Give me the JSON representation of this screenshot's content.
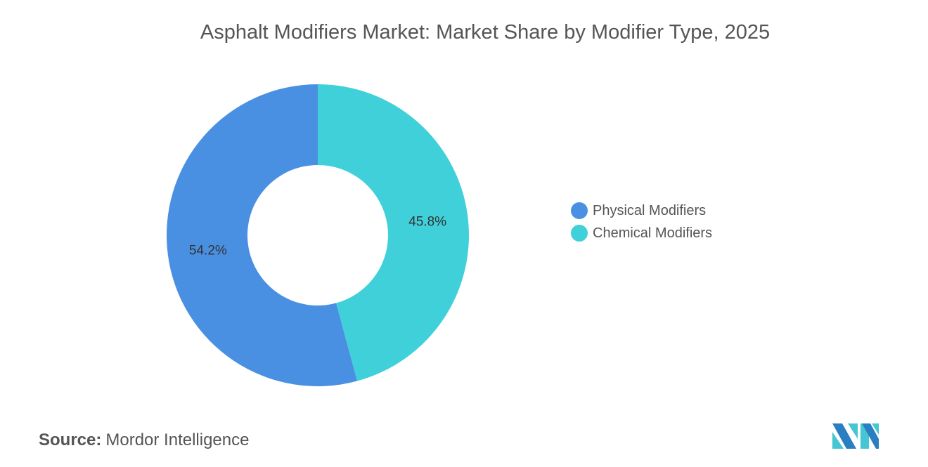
{
  "chart_data": {
    "type": "pie",
    "variant": "donut",
    "title": "Asphalt Modifiers Market: Market Share by Modifier Type, 2025",
    "categories": [
      "Physical Modifiers",
      "Chemical Modifiers"
    ],
    "values": [
      54.2,
      45.8
    ],
    "data_labels": [
      "54.2%",
      "45.8%"
    ],
    "colors": [
      "#4a90e2",
      "#40d0da"
    ],
    "legend_position": "right"
  },
  "source": {
    "label": "Source:",
    "value": "Mordor Intelligence"
  },
  "logo": {
    "name": "Mordor Intelligence logo",
    "colors": [
      "#2a7fc0",
      "#45c6d2"
    ]
  }
}
